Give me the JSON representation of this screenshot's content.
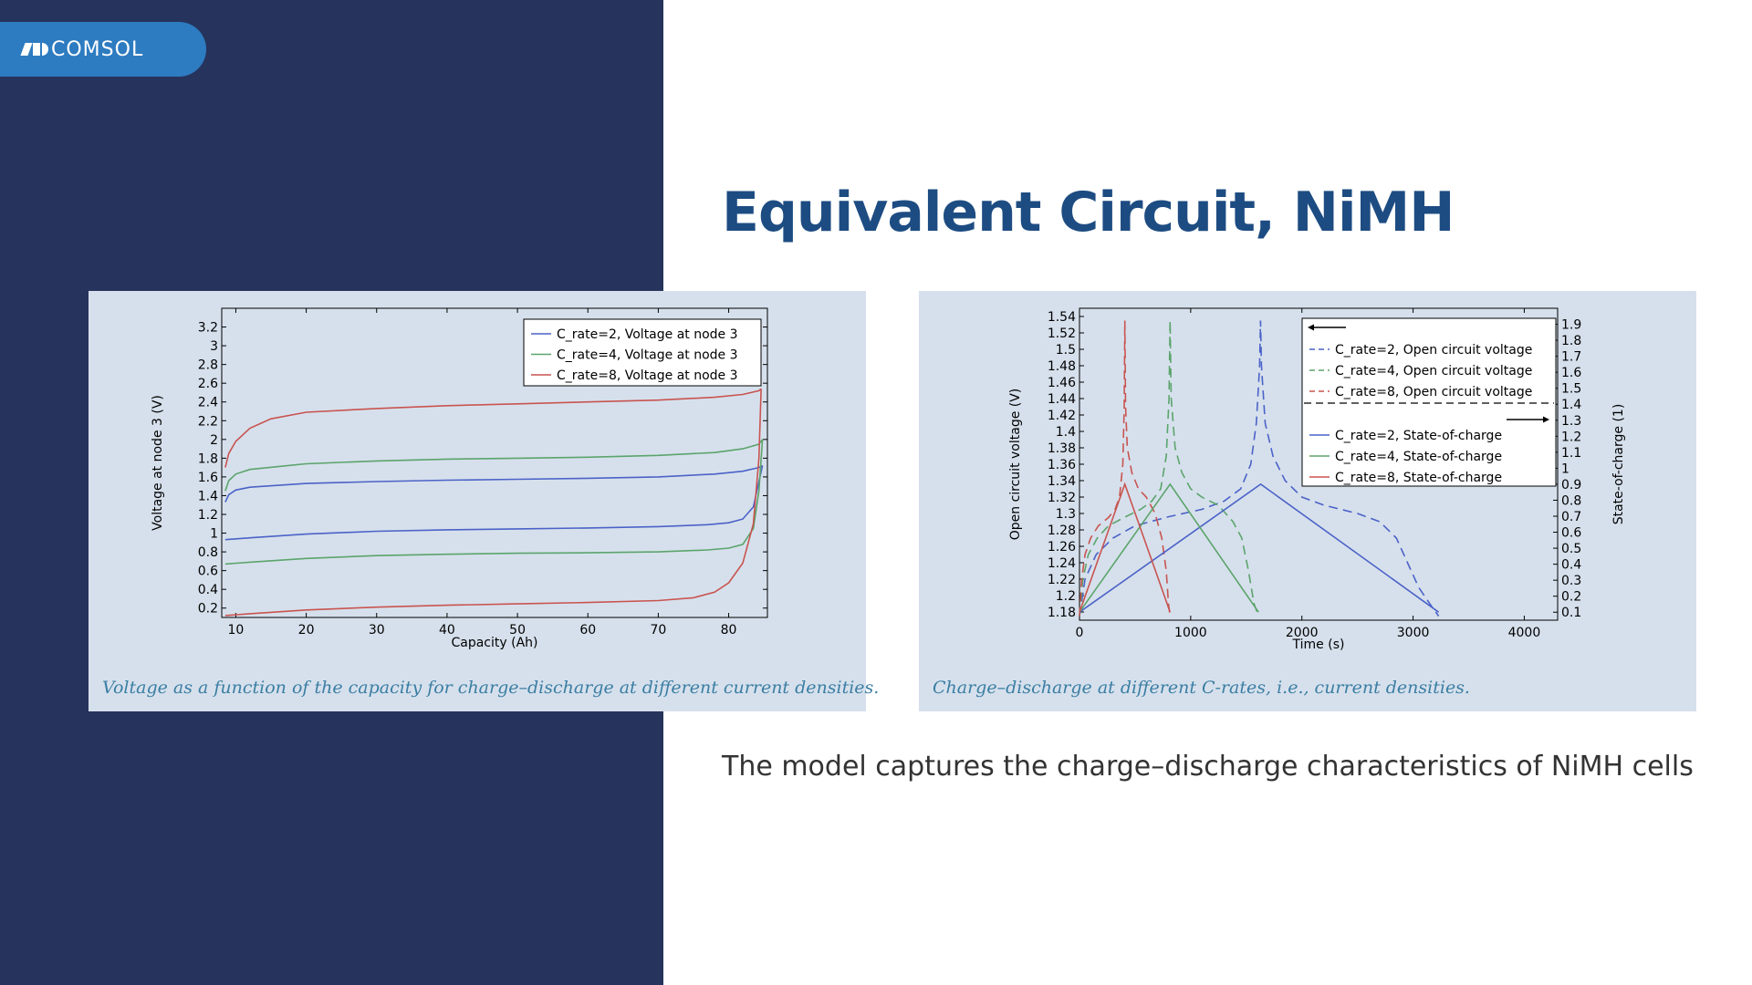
{
  "logo": {
    "text": "COMSOL"
  },
  "page": {
    "title": "Equivalent Circuit, NiMH",
    "summary": "The model captures the charge–discharge characteristics of NiMH cells",
    "colors": {
      "sidebar": "#26335c",
      "panel": "#d6e0ec",
      "title": "#1d4c82",
      "caption": "#3a7ea3",
      "series_blue": "#4b62c8",
      "series_green": "#5ba46b",
      "series_red": "#c85450"
    }
  },
  "chart_data": [
    {
      "type": "line",
      "caption": "Voltage as a function of the capacity for charge–discharge at different current densities.",
      "xlabel": "Capacity (Ah)",
      "ylabel": "Voltage at node 3 (V)",
      "xlim": [
        8,
        85.5
      ],
      "ylim": [
        0.1,
        3.4
      ],
      "xticks": [
        10,
        20,
        30,
        40,
        50,
        60,
        70,
        80
      ],
      "yticks": [
        0.2,
        0.4,
        0.6,
        0.8,
        1,
        1.2,
        1.4,
        1.6,
        1.8,
        2,
        2.2,
        2.4,
        2.6,
        2.8,
        3,
        3.2
      ],
      "legend_position": "top-right",
      "series": [
        {
          "name": "C_rate=2, Voltage at node 3",
          "color": "#4b62c8",
          "charge": [
            [
              8.5,
              1.33
            ],
            [
              9,
              1.41
            ],
            [
              10,
              1.46
            ],
            [
              12,
              1.49
            ],
            [
              20,
              1.53
            ],
            [
              30,
              1.55
            ],
            [
              40,
              1.565
            ],
            [
              50,
              1.575
            ],
            [
              60,
              1.585
            ],
            [
              70,
              1.6
            ],
            [
              78,
              1.63
            ],
            [
              82,
              1.66
            ],
            [
              84.3,
              1.7
            ],
            [
              84.8,
              1.72
            ]
          ],
          "discharge": [
            [
              8.5,
              0.93
            ],
            [
              12,
              0.95
            ],
            [
              20,
              0.99
            ],
            [
              30,
              1.02
            ],
            [
              40,
              1.035
            ],
            [
              50,
              1.045
            ],
            [
              60,
              1.055
            ],
            [
              70,
              1.07
            ],
            [
              77,
              1.09
            ],
            [
              80,
              1.11
            ],
            [
              82,
              1.15
            ],
            [
              83.5,
              1.28
            ],
            [
              84.3,
              1.55
            ],
            [
              84.8,
              1.72
            ]
          ]
        },
        {
          "name": "C_rate=4, Voltage at node 3",
          "color": "#5ba46b",
          "charge": [
            [
              8.5,
              1.45
            ],
            [
              9,
              1.56
            ],
            [
              10,
              1.63
            ],
            [
              12,
              1.68
            ],
            [
              20,
              1.74
            ],
            [
              30,
              1.77
            ],
            [
              40,
              1.79
            ],
            [
              50,
              1.8
            ],
            [
              60,
              1.81
            ],
            [
              70,
              1.83
            ],
            [
              78,
              1.86
            ],
            [
              82,
              1.9
            ],
            [
              84.3,
              1.95
            ],
            [
              84.8,
              2.0
            ]
          ],
          "discharge": [
            [
              8.5,
              0.67
            ],
            [
              12,
              0.69
            ],
            [
              20,
              0.73
            ],
            [
              30,
              0.76
            ],
            [
              40,
              0.775
            ],
            [
              50,
              0.785
            ],
            [
              60,
              0.79
            ],
            [
              70,
              0.8
            ],
            [
              77,
              0.82
            ],
            [
              80,
              0.84
            ],
            [
              82,
              0.88
            ],
            [
              83.5,
              1.05
            ],
            [
              84.3,
              1.45
            ],
            [
              84.8,
              2.0
            ]
          ]
        },
        {
          "name": "C_rate=8, Voltage at node 3",
          "color": "#c85450",
          "charge": [
            [
              8.5,
              1.7
            ],
            [
              9,
              1.85
            ],
            [
              10,
              1.98
            ],
            [
              12,
              2.12
            ],
            [
              15,
              2.22
            ],
            [
              20,
              2.29
            ],
            [
              30,
              2.33
            ],
            [
              40,
              2.36
            ],
            [
              50,
              2.38
            ],
            [
              60,
              2.4
            ],
            [
              70,
              2.42
            ],
            [
              78,
              2.45
            ],
            [
              82,
              2.48
            ],
            [
              84.3,
              2.52
            ],
            [
              84.6,
              2.54
            ]
          ],
          "discharge": [
            [
              8.5,
              0.12
            ],
            [
              12,
              0.14
            ],
            [
              20,
              0.18
            ],
            [
              30,
              0.21
            ],
            [
              40,
              0.23
            ],
            [
              50,
              0.245
            ],
            [
              60,
              0.26
            ],
            [
              70,
              0.28
            ],
            [
              75,
              0.31
            ],
            [
              78,
              0.37
            ],
            [
              80,
              0.47
            ],
            [
              82,
              0.68
            ],
            [
              83.5,
              1.1
            ],
            [
              84.3,
              1.8
            ],
            [
              84.6,
              2.54
            ]
          ]
        }
      ]
    },
    {
      "type": "line",
      "caption": "Charge–discharge at different C-rates, i.e., current densities.",
      "xlabel": "Time (s)",
      "ylabel": "Open circuit voltage (V)",
      "ylabel_right": "State-of-charge (1)",
      "xlim": [
        0,
        4300
      ],
      "ylim": [
        1.17,
        1.55
      ],
      "ylim_right": [
        0.05,
        2.0
      ],
      "xticks": [
        0,
        1000,
        2000,
        3000,
        4000
      ],
      "yticks": [
        1.18,
        1.2,
        1.22,
        1.24,
        1.26,
        1.28,
        1.3,
        1.32,
        1.34,
        1.36,
        1.38,
        1.4,
        1.42,
        1.44,
        1.46,
        1.48,
        1.5,
        1.52,
        1.54
      ],
      "yticks_right": [
        0.1,
        0.2,
        0.3,
        0.4,
        0.5,
        0.6,
        0.7,
        0.8,
        0.9,
        1,
        1.1,
        1.2,
        1.3,
        1.4,
        1.5,
        1.6,
        1.7,
        1.8,
        1.9
      ],
      "legend_position": "top-right",
      "series": [
        {
          "name": "C_rate=2, Open circuit voltage",
          "color": "#4b62c8",
          "dash": true,
          "axis": "left",
          "points": [
            [
              0,
              1.175
            ],
            [
              50,
              1.22
            ],
            [
              150,
              1.25
            ],
            [
              300,
              1.27
            ],
            [
              500,
              1.285
            ],
            [
              800,
              1.296
            ],
            [
              1100,
              1.305
            ],
            [
              1300,
              1.315
            ],
            [
              1450,
              1.33
            ],
            [
              1540,
              1.36
            ],
            [
              1590,
              1.41
            ],
            [
              1620,
              1.48
            ],
            [
              1628,
              1.535
            ],
            [
              1636,
              1.48
            ],
            [
              1670,
              1.41
            ],
            [
              1740,
              1.37
            ],
            [
              1850,
              1.34
            ],
            [
              2000,
              1.32
            ],
            [
              2200,
              1.31
            ],
            [
              2500,
              1.3
            ],
            [
              2700,
              1.29
            ],
            [
              2850,
              1.27
            ],
            [
              2950,
              1.24
            ],
            [
              3050,
              1.21
            ],
            [
              3150,
              1.19
            ],
            [
              3230,
              1.175
            ]
          ]
        },
        {
          "name": "C_rate=4, Open circuit voltage",
          "color": "#5ba46b",
          "dash": true,
          "axis": "left",
          "points": [
            [
              0,
              1.175
            ],
            [
              30,
              1.22
            ],
            [
              80,
              1.25
            ],
            [
              160,
              1.27
            ],
            [
              260,
              1.285
            ],
            [
              400,
              1.295
            ],
            [
              550,
              1.305
            ],
            [
              650,
              1.315
            ],
            [
              730,
              1.33
            ],
            [
              780,
              1.37
            ],
            [
              805,
              1.44
            ],
            [
              815,
              1.535
            ],
            [
              825,
              1.44
            ],
            [
              860,
              1.38
            ],
            [
              920,
              1.35
            ],
            [
              1000,
              1.33
            ],
            [
              1100,
              1.32
            ],
            [
              1250,
              1.31
            ],
            [
              1380,
              1.29
            ],
            [
              1460,
              1.27
            ],
            [
              1520,
              1.23
            ],
            [
              1570,
              1.19
            ],
            [
              1610,
              1.175
            ]
          ]
        },
        {
          "name": "C_rate=8, Open circuit voltage",
          "color": "#c85450",
          "dash": true,
          "axis": "left",
          "points": [
            [
              0,
              1.175
            ],
            [
              20,
              1.22
            ],
            [
              50,
              1.25
            ],
            [
              100,
              1.27
            ],
            [
              170,
              1.285
            ],
            [
              260,
              1.295
            ],
            [
              320,
              1.305
            ],
            [
              360,
              1.32
            ],
            [
              390,
              1.36
            ],
            [
              402,
              1.43
            ],
            [
              408,
              1.535
            ],
            [
              414,
              1.43
            ],
            [
              430,
              1.38
            ],
            [
              470,
              1.35
            ],
            [
              530,
              1.33
            ],
            [
              600,
              1.32
            ],
            [
              680,
              1.3
            ],
            [
              740,
              1.27
            ],
            [
              780,
              1.23
            ],
            [
              800,
              1.19
            ],
            [
              815,
              1.175
            ]
          ]
        },
        {
          "name": "C_rate=2, State-of-charge",
          "color": "#4b62c8",
          "dash": false,
          "axis": "right",
          "points": [
            [
              0,
              0.1
            ],
            [
              1630,
              0.9
            ],
            [
              3230,
              0.1
            ]
          ]
        },
        {
          "name": "C_rate=4, State-of-charge",
          "color": "#5ba46b",
          "dash": false,
          "axis": "right",
          "points": [
            [
              0,
              0.1
            ],
            [
              815,
              0.9
            ],
            [
              1610,
              0.1
            ]
          ]
        },
        {
          "name": "C_rate=8, State-of-charge",
          "color": "#c85450",
          "dash": false,
          "axis": "right",
          "points": [
            [
              0,
              0.1
            ],
            [
              408,
              0.9
            ],
            [
              815,
              0.1
            ]
          ]
        }
      ]
    }
  ]
}
